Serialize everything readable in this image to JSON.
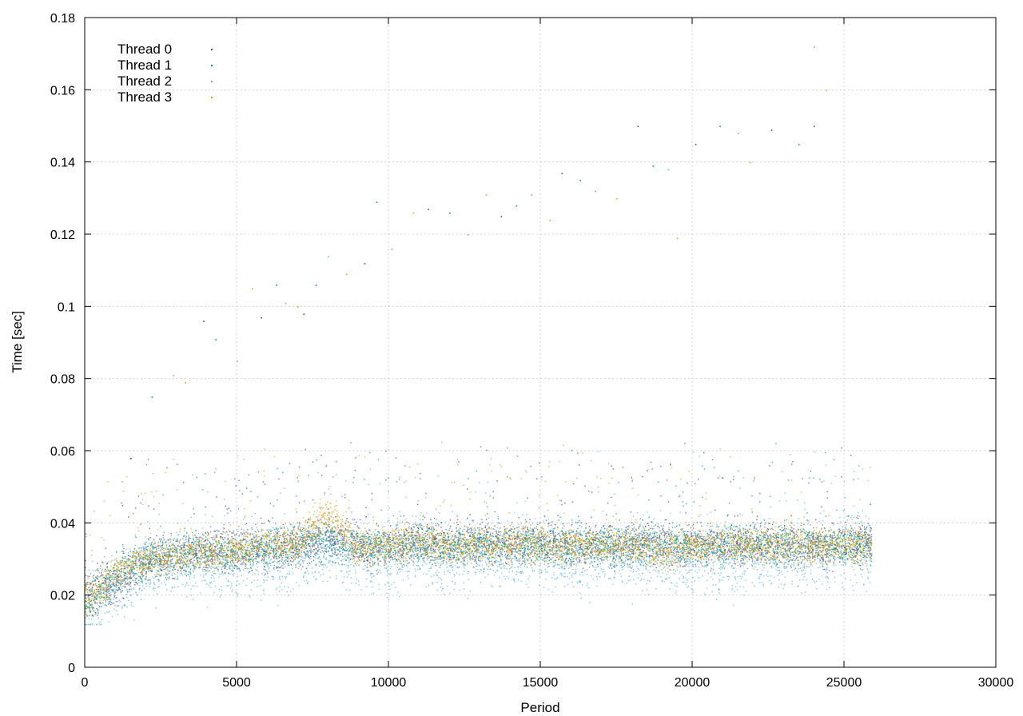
{
  "chart_data": {
    "type": "scatter",
    "title": "",
    "xlabel": "Period",
    "ylabel": "Time [sec]",
    "xlim": [
      0,
      30000
    ],
    "ylim": [
      0,
      0.18
    ],
    "x_ticks": [
      "0",
      "5000",
      "10000",
      "15000",
      "20000",
      "25000",
      "30000"
    ],
    "y_ticks": [
      "0",
      "0.02",
      "0.04",
      "0.06",
      "0.08",
      "0.1",
      "0.12",
      "0.14",
      "0.16",
      "0.18"
    ],
    "grid": true,
    "legend_position": "top-left",
    "series": [
      {
        "name": "Thread 0",
        "color": "#5a3a8c",
        "points": [
          [
            0,
            0.019
          ],
          [
            1000,
            0.024
          ],
          [
            2000,
            0.029
          ],
          [
            3000,
            0.031
          ],
          [
            4000,
            0.032
          ],
          [
            5000,
            0.033
          ],
          [
            6000,
            0.033
          ],
          [
            7000,
            0.034
          ],
          [
            8000,
            0.036
          ],
          [
            9000,
            0.034
          ],
          [
            10000,
            0.033
          ],
          [
            11000,
            0.035
          ],
          [
            12000,
            0.034
          ],
          [
            13000,
            0.035
          ],
          [
            14000,
            0.034
          ],
          [
            15000,
            0.035
          ],
          [
            16000,
            0.034
          ],
          [
            17000,
            0.034
          ],
          [
            18000,
            0.034
          ],
          [
            19000,
            0.034
          ],
          [
            20000,
            0.034
          ],
          [
            21000,
            0.034
          ],
          [
            22000,
            0.034
          ],
          [
            23000,
            0.034
          ],
          [
            24000,
            0.034
          ],
          [
            25000,
            0.034
          ],
          [
            25900,
            0.035
          ]
        ]
      },
      {
        "name": "Thread 1",
        "color": "#009e73",
        "points": [
          [
            0,
            0.018
          ],
          [
            1000,
            0.025
          ],
          [
            2000,
            0.03
          ],
          [
            3000,
            0.031
          ],
          [
            4000,
            0.032
          ],
          [
            5000,
            0.032
          ],
          [
            6000,
            0.033
          ],
          [
            7000,
            0.034
          ],
          [
            8000,
            0.035
          ],
          [
            9000,
            0.034
          ],
          [
            10000,
            0.034
          ],
          [
            11000,
            0.034
          ],
          [
            12000,
            0.034
          ],
          [
            13000,
            0.034
          ],
          [
            14000,
            0.034
          ],
          [
            15000,
            0.034
          ],
          [
            16000,
            0.034
          ],
          [
            17000,
            0.034
          ],
          [
            18000,
            0.034
          ],
          [
            19000,
            0.034
          ],
          [
            20000,
            0.034
          ],
          [
            21000,
            0.034
          ],
          [
            22000,
            0.034
          ],
          [
            23000,
            0.034
          ],
          [
            24000,
            0.034
          ],
          [
            25000,
            0.034
          ],
          [
            25900,
            0.034
          ]
        ]
      },
      {
        "name": "Thread 2",
        "color": "#56b4e9",
        "points": [
          [
            0,
            0.017
          ],
          [
            1000,
            0.023
          ],
          [
            2000,
            0.028
          ],
          [
            3000,
            0.029
          ],
          [
            4000,
            0.03
          ],
          [
            5000,
            0.03
          ],
          [
            6000,
            0.031
          ],
          [
            7000,
            0.031
          ],
          [
            8000,
            0.033
          ],
          [
            9000,
            0.031
          ],
          [
            10000,
            0.03
          ],
          [
            11000,
            0.033
          ],
          [
            12000,
            0.031
          ],
          [
            13000,
            0.032
          ],
          [
            14000,
            0.031
          ],
          [
            15000,
            0.033
          ],
          [
            16000,
            0.031
          ],
          [
            17000,
            0.031
          ],
          [
            18000,
            0.031
          ],
          [
            19000,
            0.031
          ],
          [
            20000,
            0.031
          ],
          [
            21000,
            0.031
          ],
          [
            22000,
            0.031
          ],
          [
            23000,
            0.031
          ],
          [
            24000,
            0.031
          ],
          [
            25000,
            0.033
          ],
          [
            25900,
            0.032
          ]
        ]
      },
      {
        "name": "Thread 3",
        "color": "#e69f00",
        "points": [
          [
            0,
            0.018
          ],
          [
            1000,
            0.026
          ],
          [
            2000,
            0.03
          ],
          [
            3000,
            0.031
          ],
          [
            4000,
            0.032
          ],
          [
            5000,
            0.033
          ],
          [
            6000,
            0.034
          ],
          [
            7000,
            0.034
          ],
          [
            8000,
            0.043
          ],
          [
            9000,
            0.033
          ],
          [
            10000,
            0.034
          ],
          [
            11000,
            0.035
          ],
          [
            12000,
            0.034
          ],
          [
            13000,
            0.034
          ],
          [
            14000,
            0.034
          ],
          [
            15000,
            0.034
          ],
          [
            16000,
            0.034
          ],
          [
            17000,
            0.034
          ],
          [
            18000,
            0.034
          ],
          [
            19000,
            0.032
          ],
          [
            20000,
            0.034
          ],
          [
            21000,
            0.034
          ],
          [
            22000,
            0.034
          ],
          [
            23000,
            0.034
          ],
          [
            24000,
            0.034
          ],
          [
            25000,
            0.034
          ],
          [
            25900,
            0.034
          ]
        ]
      }
    ],
    "outliers": [
      [
        1500,
        0.058
      ],
      [
        2200,
        0.075
      ],
      [
        2900,
        0.081
      ],
      [
        3300,
        0.079
      ],
      [
        3900,
        0.096
      ],
      [
        4300,
        0.091
      ],
      [
        5000,
        0.085
      ],
      [
        5500,
        0.105
      ],
      [
        5800,
        0.097
      ],
      [
        6300,
        0.106
      ],
      [
        6600,
        0.101
      ],
      [
        7000,
        0.1
      ],
      [
        7200,
        0.098
      ],
      [
        7600,
        0.106
      ],
      [
        8000,
        0.114
      ],
      [
        8600,
        0.109
      ],
      [
        9200,
        0.112
      ],
      [
        9600,
        0.129
      ],
      [
        10100,
        0.116
      ],
      [
        10800,
        0.126
      ],
      [
        11300,
        0.127
      ],
      [
        12000,
        0.126
      ],
      [
        12600,
        0.12
      ],
      [
        13200,
        0.131
      ],
      [
        13700,
        0.125
      ],
      [
        14200,
        0.128
      ],
      [
        14700,
        0.131
      ],
      [
        15300,
        0.124
      ],
      [
        15700,
        0.137
      ],
      [
        16300,
        0.135
      ],
      [
        16800,
        0.132
      ],
      [
        17500,
        0.13
      ],
      [
        18200,
        0.15
      ],
      [
        18700,
        0.139
      ],
      [
        19200,
        0.138
      ],
      [
        19500,
        0.119
      ],
      [
        20100,
        0.145
      ],
      [
        20900,
        0.15
      ],
      [
        21500,
        0.148
      ],
      [
        21900,
        0.14
      ],
      [
        22600,
        0.149
      ],
      [
        23500,
        0.145
      ],
      [
        24000,
        0.172
      ],
      [
        24400,
        0.16
      ],
      [
        24000,
        0.15
      ]
    ]
  }
}
